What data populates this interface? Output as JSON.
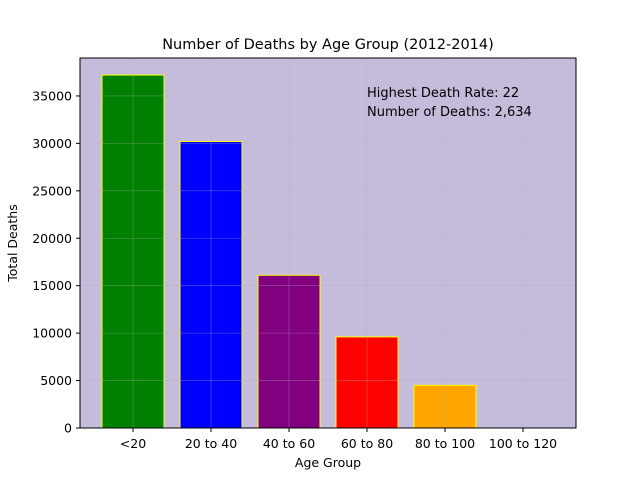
{
  "chart_data": {
    "type": "bar",
    "title": "Number of Deaths by Age Group (2012-2014)",
    "xlabel": "Age Group",
    "ylabel": "Total Deaths",
    "categories": [
      "<20",
      "20 to 40",
      "40 to 60",
      "60 to 80",
      "80 to 100",
      "100 to 120"
    ],
    "values": [
      37200,
      30200,
      16100,
      9600,
      4500,
      0
    ],
    "bar_colors": [
      "#008000",
      "#0000ff",
      "#800080",
      "#ff0000",
      "#ffa500",
      "#ffa500"
    ],
    "bar_edge_color": "#ffff00",
    "background_color": "#c5bcdc",
    "ylim": [
      0,
      39000
    ],
    "yticks": [
      0,
      5000,
      10000,
      15000,
      20000,
      25000,
      30000,
      35000
    ],
    "grid": true,
    "annotation": {
      "line1": "Highest Death Rate: 22",
      "line2": "Number of Deaths: 2,634"
    }
  }
}
